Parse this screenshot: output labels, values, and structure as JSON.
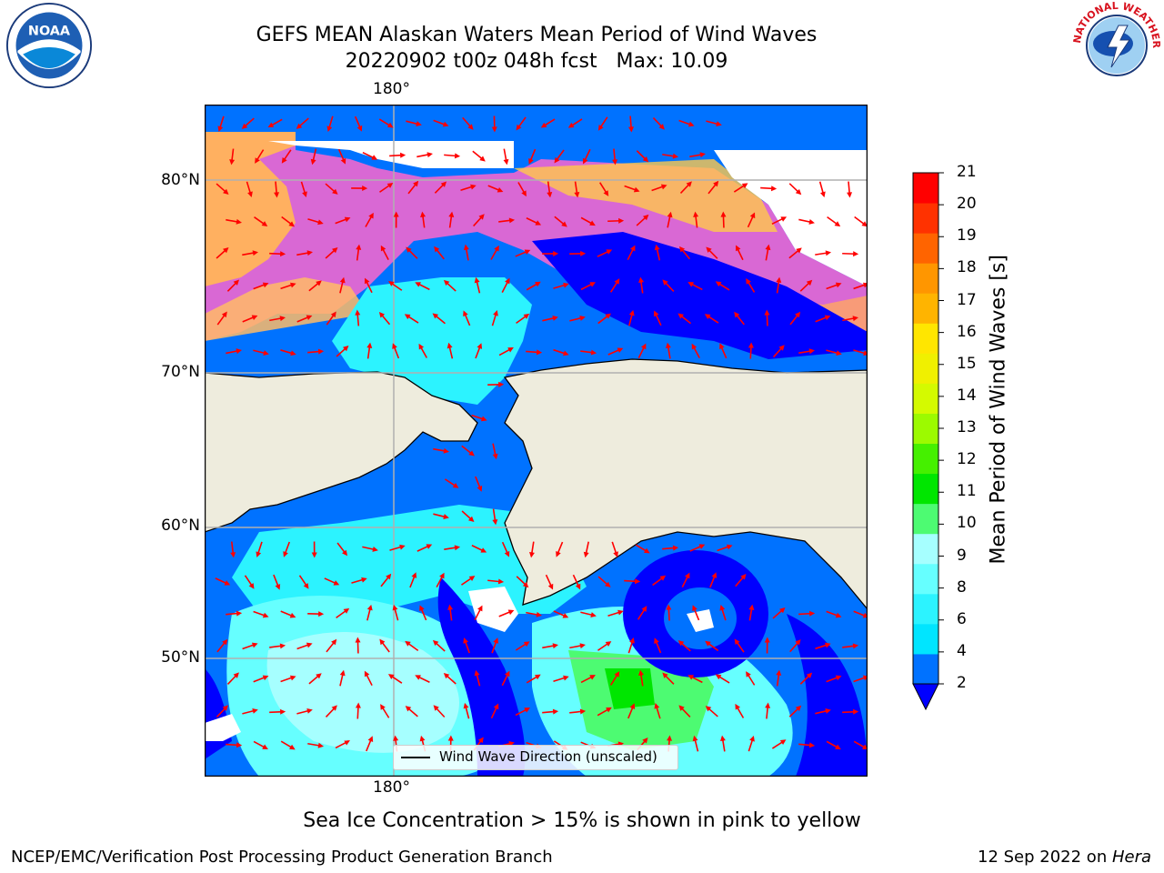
{
  "title": {
    "line1": "GEFS MEAN Alaskan Waters Mean Period of Wind Waves",
    "line2": "20220902 t00z 048h fcst   Max: 10.09"
  },
  "map": {
    "longitude_label_top": "180°",
    "longitude_label_bottom": "180°",
    "latitude_labels": [
      "80°N",
      "70°N",
      "60°N",
      "50°N"
    ],
    "land_color": "#eeecdd",
    "grid_color": "#b0b0b0"
  },
  "legend": {
    "label": "Wind Wave Direction (unscaled)",
    "arrow_color": "#ff0000"
  },
  "colorbar": {
    "label": "Mean Period of Wind Waves [s]",
    "ticks": [
      "2",
      "4",
      "6",
      "8",
      "9",
      "10",
      "11",
      "12",
      "13",
      "14",
      "15",
      "16",
      "17",
      "18",
      "19",
      "20",
      "21"
    ],
    "colors": [
      "#0072ff",
      "#00e5ff",
      "#2cf3ff",
      "#66ffff",
      "#a6ffff",
      "#4dfb72",
      "#00e600",
      "#45f000",
      "#9cfa00",
      "#d4fa00",
      "#f0f000",
      "#ffe600",
      "#ffb400",
      "#ff9600",
      "#ff6400",
      "#ff3200",
      "#ff0000"
    ],
    "extend_color": "#0000ff"
  },
  "note": "Sea Ice Concentration > 15% is shown in pink to yellow",
  "footer": {
    "left": "NCEP/EMC/Verification Post Processing Product Generation Branch",
    "right_date": "12 Sep 2022 on ",
    "right_host": "Hera"
  },
  "logos": {
    "noaa_text": "NOAA",
    "nws_text": "NATIONAL WEATHER SERVICE"
  }
}
